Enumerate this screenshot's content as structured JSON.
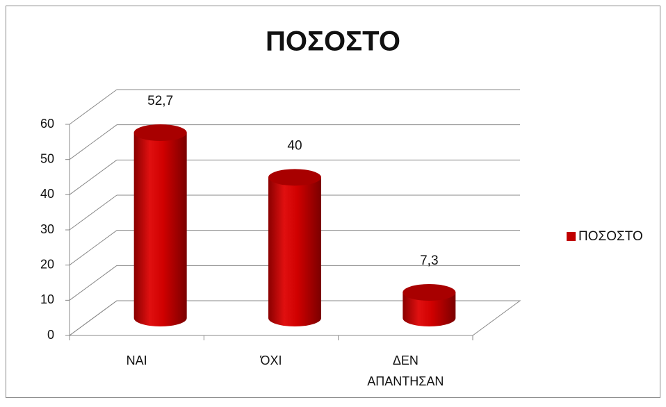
{
  "chart_data": {
    "type": "bar3d_cylinder",
    "title": "ΠΟΣΟΣΤΟ",
    "categories": [
      "ΝΑΙ",
      "ΌΧΙ",
      "ΔΕΝ ΑΠΑΝΤΗΣΑΝ"
    ],
    "series": [
      {
        "name": "ΠΟΣΟΣΤΟ",
        "color": "#c00000",
        "values": [
          52.7,
          40,
          7.3
        ],
        "value_labels": [
          "52,7",
          "40",
          "7,3"
        ]
      }
    ],
    "ylim": [
      0,
      60
    ],
    "yticks": [
      0,
      10,
      20,
      30,
      40,
      50,
      60
    ],
    "grid": true,
    "legend": "right"
  }
}
